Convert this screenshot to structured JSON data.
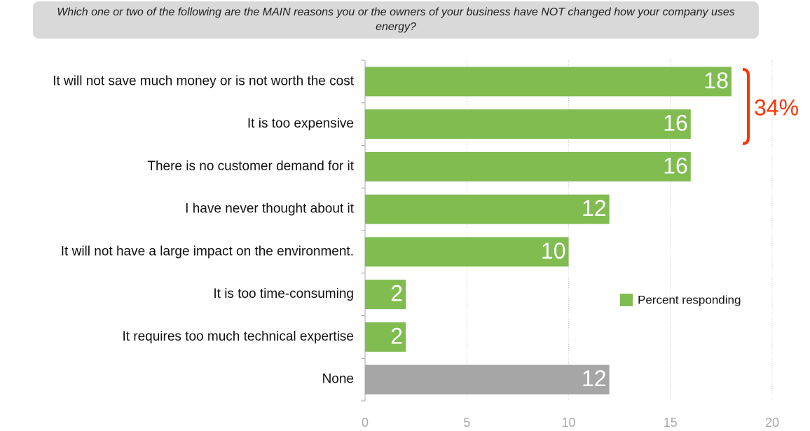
{
  "chart_data": {
    "type": "bar",
    "orientation": "horizontal",
    "title": "Which one or two of the following are the MAIN reasons you or the owners of your business have NOT changed how your company uses energy?",
    "categories": [
      "It will not save much money or is not worth the cost",
      "It is too expensive",
      "There is no customer demand for it",
      "I have never thought about it",
      "It will not have a large impact on the environment.",
      "It is too time-consuming",
      "It requires too much technical expertise",
      "None"
    ],
    "series": [
      {
        "name": "Percent responding",
        "color": "#80bc50",
        "values": [
          18,
          16,
          16,
          12,
          10,
          2,
          2,
          12
        ],
        "colors": [
          "#80bc50",
          "#80bc50",
          "#80bc50",
          "#80bc50",
          "#80bc50",
          "#80bc50",
          "#80bc50",
          "#a6a6a6"
        ]
      }
    ],
    "xlim": [
      0,
      20
    ],
    "xticks": [
      0,
      5,
      10,
      15,
      20
    ],
    "grid": true,
    "legend": "right",
    "annotation": {
      "text": "34%",
      "color": "#ff3300"
    }
  }
}
